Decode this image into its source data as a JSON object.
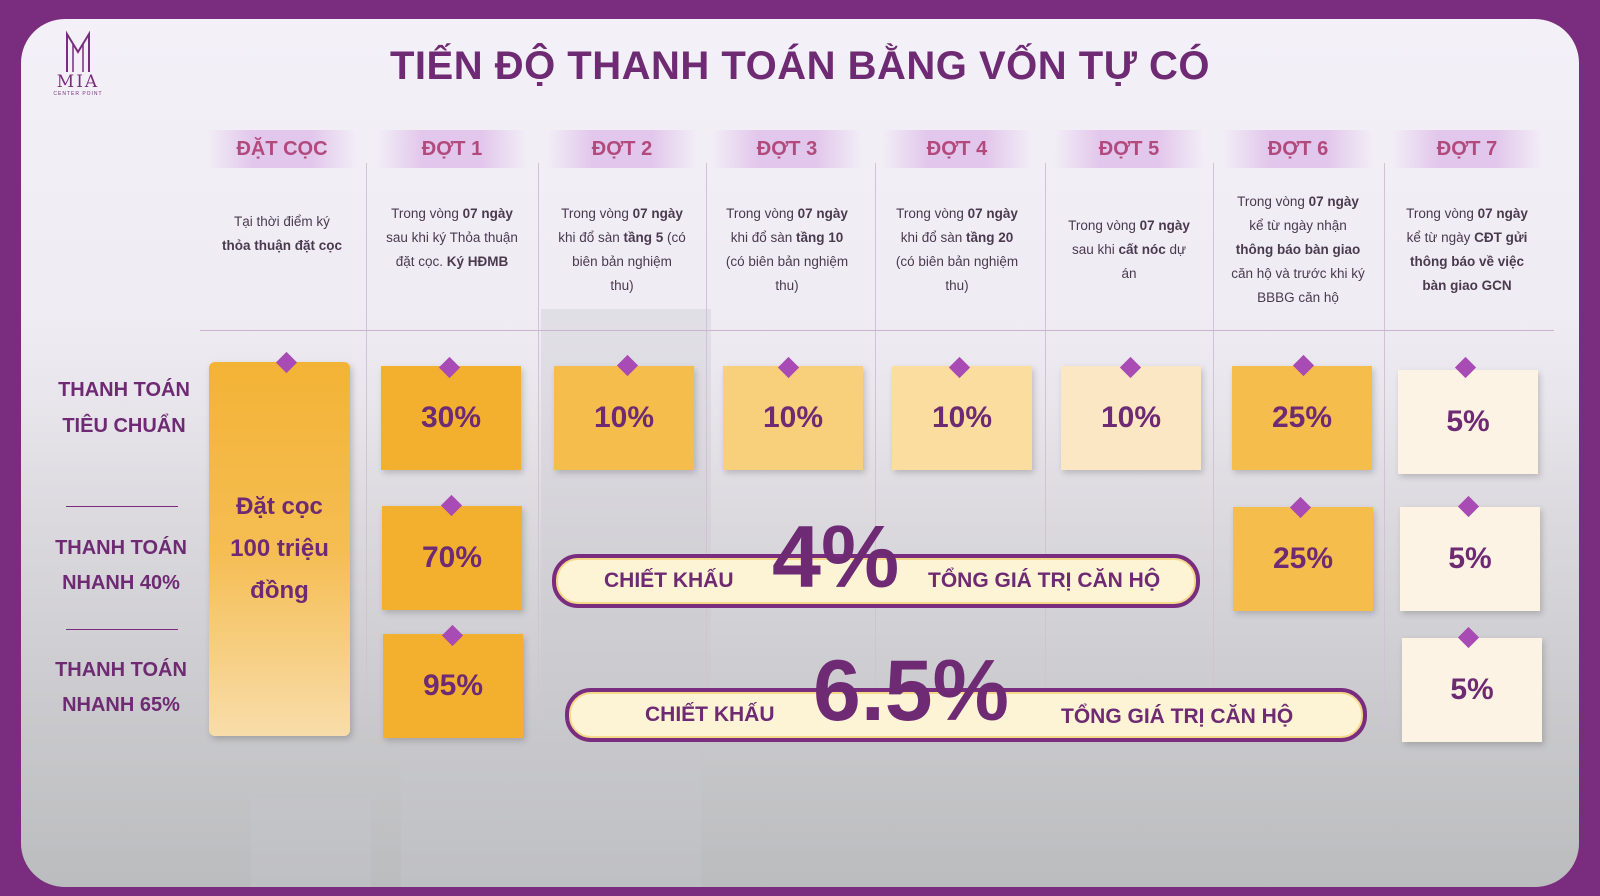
{
  "logo": {
    "name": "MIA",
    "tagline": "CENTER POINT"
  },
  "title": "TIẾN ĐỘ THANH TOÁN BẰNG VỐN TỰ CÓ",
  "columns": [
    {
      "head": "ĐẶT CỌC",
      "desc_html": "Tại thời điểm ký<br><b>thỏa thuận đặt cọc</b>"
    },
    {
      "head": "ĐỢT 1",
      "desc_html": "Trong vòng <b>07 ngày</b><br>sau khi ký Thỏa thuận<br>đặt cọc. <b>Ký HĐMB</b>"
    },
    {
      "head": "ĐỢT 2",
      "desc_html": "Trong vòng <b>07 ngày</b><br>khi đổ sàn <b>tầng 5</b> (có<br>biên bản nghiệm<br>thu)"
    },
    {
      "head": "ĐỢT 3",
      "desc_html": "Trong vòng <b>07 ngày</b><br>khi đổ sàn <b>tầng 10</b><br>(có biên bản nghiệm<br>thu)"
    },
    {
      "head": "ĐỢT 4",
      "desc_html": "Trong vòng <b>07 ngày</b><br>khi đổ sàn <b>tầng 20</b><br>(có biên bản nghiệm<br>thu)"
    },
    {
      "head": "ĐỢT 5",
      "desc_html": "Trong vòng <b>07 ngày</b><br>sau khi <b>cất nóc</b> dự<br>án"
    },
    {
      "head": "ĐỢT 6",
      "desc_html": "Trong vòng <b>07 ngày</b><br>kể từ ngày nhận<br><b>thông báo bàn giao</b><br>căn hộ và trước khi ký<br>BBBG căn hộ"
    },
    {
      "head": "ĐỢT 7",
      "desc_html": "Trong vòng <b>07 ngày</b><br>kể từ ngày <b>CĐT gửi<br>thông báo về việc<br>bàn giao GCN</b>"
    }
  ],
  "rows": {
    "standard": "THANH TOÁN TIÊU CHUẨN",
    "fast40": "THANH TOÁN NHANH 40%",
    "fast65": "THANH TOÁN NHANH 65%"
  },
  "deposit_text": "Đặt cọc 100 triệu đồng",
  "standard_values": [
    "30%",
    "10%",
    "10%",
    "10%",
    "10%",
    "25%",
    "5%"
  ],
  "fast40_values": {
    "dot1": "70%",
    "dot6": "25%",
    "dot7": "5%"
  },
  "fast65_values": {
    "dot1": "95%",
    "dot7": "5%"
  },
  "discount40": {
    "label": "CHIẾT KHẤU",
    "value": "4%",
    "suffix": "TỔNG GIÁ TRỊ CĂN HỘ"
  },
  "discount65": {
    "label": "CHIẾT KHẤU",
    "value": "6.5%",
    "suffix": "TỔNG GIÁ TRỊ CĂN HỘ"
  },
  "colors": {
    "frame": "#7a2d7e",
    "text": "#6e2a73",
    "box_dark": "#f3b02e",
    "diamond": "#a84bb4"
  }
}
